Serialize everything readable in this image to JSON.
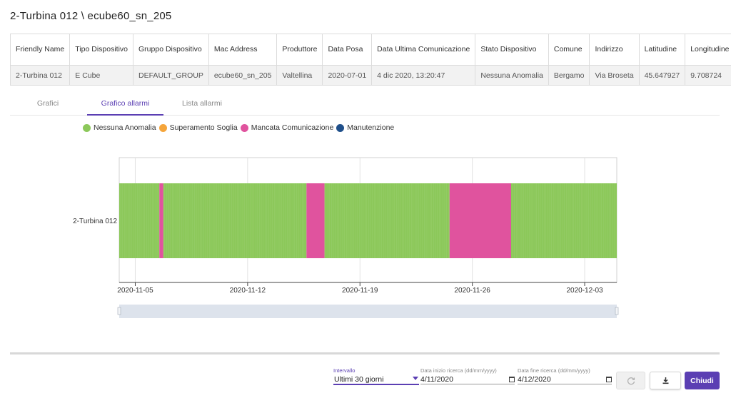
{
  "title": "2-Turbina 012 \\ ecube60_sn_205",
  "table": {
    "headers": [
      "Friendly Name",
      "Tipo Dispositivo",
      "Gruppo Dispositivo",
      "Mac Address",
      "Produttore",
      "Data Posa",
      "Data Ultima Comunicazione",
      "Stato Dispositivo",
      "Comune",
      "Indirizzo",
      "Latitudine",
      "Longitudine"
    ],
    "row": [
      "2-Turbina 012",
      "E Cube",
      "DEFAULT_GROUP",
      "ecube60_sn_205",
      "Valtellina",
      "2020-07-01",
      "4 dic 2020, 13:20:47",
      "Nessuna Anomalia",
      "Bergamo",
      "Via Broseta",
      "45.647927",
      "9.708724"
    ]
  },
  "tabs": [
    "Grafici",
    "Grafico allarmi",
    "Lista allarmi"
  ],
  "active_tab": "Grafico allarmi",
  "legend": [
    {
      "label": "Nessuna Anomalia",
      "color": "#8cc85a"
    },
    {
      "label": "Superamento Soglia",
      "color": "#f5a53b"
    },
    {
      "label": "Mancata Comunicazione",
      "color": "#e0539e"
    },
    {
      "label": "Manutenzione",
      "color": "#1f4f8a"
    }
  ],
  "chart_data": {
    "type": "timeline",
    "category": "2-Turbina 012",
    "x_ticks": [
      "2020-11-05",
      "2020-11-12",
      "2020-11-19",
      "2020-11-26",
      "2020-12-03"
    ],
    "xlim": [
      "2020-11-04",
      "2020-12-05"
    ],
    "segments": [
      {
        "start": "2020-11-04T00:00",
        "end": "2020-11-06T12:00",
        "state": "Nessuna Anomalia"
      },
      {
        "start": "2020-11-06T12:00",
        "end": "2020-11-06T18:00",
        "state": "Mancata Comunicazione"
      },
      {
        "start": "2020-11-06T18:00",
        "end": "2020-11-15T16:00",
        "state": "Nessuna Anomalia"
      },
      {
        "start": "2020-11-15T16:00",
        "end": "2020-11-16T19:00",
        "state": "Mancata Comunicazione"
      },
      {
        "start": "2020-11-16T19:00",
        "end": "2020-11-24T14:00",
        "state": "Nessuna Anomalia"
      },
      {
        "start": "2020-11-24T14:00",
        "end": "2020-11-28T10:00",
        "state": "Mancata Comunicazione"
      },
      {
        "start": "2020-11-28T10:00",
        "end": "2020-12-05T00:00",
        "state": "Nessuna Anomalia"
      }
    ]
  },
  "bottom": {
    "interval_label": "Intervallo",
    "interval_value": "Ultimi 30 giorni",
    "start_label": "Data inizio ricerca (dd/mm/yyyy)",
    "start_value": "4/11/2020",
    "end_label": "Data fine ricerca (dd/mm/yyyy)",
    "end_value": "4/12/2020",
    "close_label": "Chiudi"
  }
}
